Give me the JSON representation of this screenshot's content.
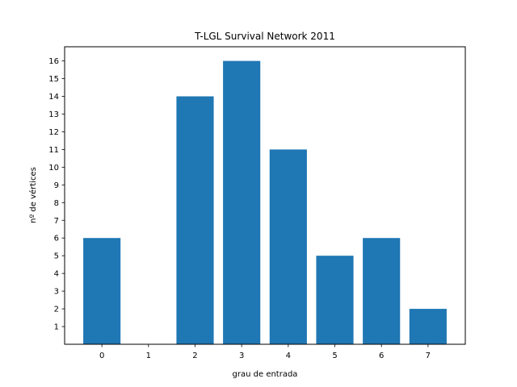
{
  "chart_data": {
    "type": "bar",
    "title": "T-LGL Survival Network 2011",
    "xlabel": "grau de entrada",
    "ylabel": "nº de vértices",
    "categories": [
      "0",
      "1",
      "2",
      "3",
      "4",
      "5",
      "6",
      "7"
    ],
    "values": [
      6,
      0,
      14,
      16,
      11,
      5,
      6,
      2
    ],
    "xlim": [
      -0.8,
      7.8
    ],
    "ylim": [
      0,
      16.8
    ],
    "yticks": [
      1,
      2,
      3,
      4,
      5,
      6,
      7,
      8,
      9,
      10,
      11,
      12,
      13,
      14,
      15,
      16
    ],
    "grid": false,
    "bar_color": "#1f77b4"
  }
}
